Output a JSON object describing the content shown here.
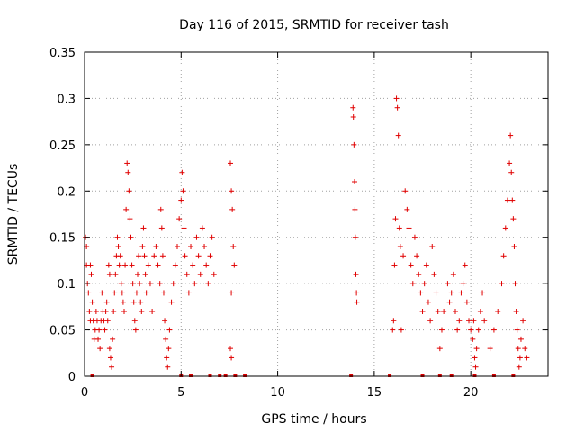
{
  "chart_data": {
    "type": "scatter",
    "title": "Day 116 of 2015, SRMTID for receiver tash",
    "xlabel": "GPS time / hours",
    "ylabel": "SRMTID / TECUs",
    "xlim": [
      0,
      24
    ],
    "ylim": [
      0,
      0.35
    ],
    "xticks": [
      0,
      5,
      10,
      15,
      20
    ],
    "xtick_labels": [
      "0",
      "5",
      "10",
      "15",
      "20"
    ],
    "yticks": [
      0,
      0.05,
      0.1,
      0.15,
      0.2,
      0.25,
      0.3,
      0.35
    ],
    "ytick_labels": [
      "0",
      "0.05",
      "0.1",
      "0.15",
      "0.2",
      "0.25",
      "0.3",
      "0.35"
    ],
    "grid": true,
    "marker": "plus",
    "color": "#e00000",
    "series": [
      {
        "name": "SRMTID",
        "points": [
          [
            0.05,
            0.15
          ],
          [
            0.1,
            0.14
          ],
          [
            0.1,
            0.12
          ],
          [
            0.15,
            0.1
          ],
          [
            0.2,
            0.09
          ],
          [
            0.25,
            0.07
          ],
          [
            0.3,
            0.06
          ],
          [
            0.3,
            0.12
          ],
          [
            0.35,
            0.11
          ],
          [
            0.4,
            0.08
          ],
          [
            0.45,
            0.06
          ],
          [
            0.5,
            0.04
          ],
          [
            0.55,
            0.05
          ],
          [
            0.6,
            0.07
          ],
          [
            0.65,
            0.06
          ],
          [
            0.7,
            0.04
          ],
          [
            0.75,
            0.05
          ],
          [
            0.8,
            0.03
          ],
          [
            0.85,
            0.06
          ],
          [
            0.9,
            0.09
          ],
          [
            0.95,
            0.07
          ],
          [
            1.0,
            0.06
          ],
          [
            1.05,
            0.05
          ],
          [
            1.1,
            0.07
          ],
          [
            1.15,
            0.08
          ],
          [
            1.2,
            0.06
          ],
          [
            1.25,
            0.12
          ],
          [
            1.3,
            0.11
          ],
          [
            1.3,
            0.03
          ],
          [
            1.35,
            0.02
          ],
          [
            1.4,
            0.01
          ],
          [
            1.45,
            0.04
          ],
          [
            1.5,
            0.07
          ],
          [
            1.55,
            0.09
          ],
          [
            1.6,
            0.11
          ],
          [
            1.65,
            0.13
          ],
          [
            1.7,
            0.15
          ],
          [
            1.75,
            0.14
          ],
          [
            1.8,
            0.12
          ],
          [
            1.85,
            0.13
          ],
          [
            1.9,
            0.1
          ],
          [
            1.95,
            0.09
          ],
          [
            2.0,
            0.08
          ],
          [
            2.05,
            0.07
          ],
          [
            2.1,
            0.12
          ],
          [
            2.15,
            0.18
          ],
          [
            2.2,
            0.23
          ],
          [
            2.25,
            0.22
          ],
          [
            2.3,
            0.2
          ],
          [
            2.35,
            0.17
          ],
          [
            2.4,
            0.15
          ],
          [
            2.45,
            0.12
          ],
          [
            2.5,
            0.1
          ],
          [
            2.55,
            0.08
          ],
          [
            2.6,
            0.06
          ],
          [
            2.65,
            0.05
          ],
          [
            2.7,
            0.09
          ],
          [
            2.75,
            0.11
          ],
          [
            2.8,
            0.13
          ],
          [
            2.85,
            0.1
          ],
          [
            2.9,
            0.08
          ],
          [
            2.95,
            0.07
          ],
          [
            3.0,
            0.14
          ],
          [
            3.05,
            0.16
          ],
          [
            3.1,
            0.13
          ],
          [
            3.15,
            0.11
          ],
          [
            3.2,
            0.09
          ],
          [
            3.3,
            0.12
          ],
          [
            3.4,
            0.1
          ],
          [
            3.5,
            0.07
          ],
          [
            3.6,
            0.13
          ],
          [
            3.7,
            0.14
          ],
          [
            3.8,
            0.12
          ],
          [
            3.9,
            0.1
          ],
          [
            3.95,
            0.18
          ],
          [
            4.0,
            0.16
          ],
          [
            4.05,
            0.13
          ],
          [
            4.1,
            0.09
          ],
          [
            4.15,
            0.06
          ],
          [
            4.2,
            0.04
          ],
          [
            4.25,
            0.02
          ],
          [
            4.3,
            0.01
          ],
          [
            4.35,
            0.03
          ],
          [
            4.4,
            0.05
          ],
          [
            4.5,
            0.08
          ],
          [
            4.6,
            0.1
          ],
          [
            4.7,
            0.12
          ],
          [
            4.8,
            0.14
          ],
          [
            4.9,
            0.17
          ],
          [
            5.0,
            0.19
          ],
          [
            5.05,
            0.22
          ],
          [
            5.1,
            0.2
          ],
          [
            5.15,
            0.16
          ],
          [
            5.2,
            0.13
          ],
          [
            5.3,
            0.11
          ],
          [
            5.4,
            0.09
          ],
          [
            5.5,
            0.14
          ],
          [
            5.6,
            0.12
          ],
          [
            5.7,
            0.1
          ],
          [
            5.8,
            0.15
          ],
          [
            5.9,
            0.13
          ],
          [
            6.0,
            0.11
          ],
          [
            6.1,
            0.16
          ],
          [
            6.2,
            0.14
          ],
          [
            6.3,
            0.12
          ],
          [
            6.4,
            0.1
          ],
          [
            6.5,
            0.13
          ],
          [
            6.6,
            0.15
          ],
          [
            6.7,
            0.11
          ],
          [
            7.55,
            0.23
          ],
          [
            7.6,
            0.2
          ],
          [
            7.65,
            0.18
          ],
          [
            7.7,
            0.14
          ],
          [
            7.75,
            0.12
          ],
          [
            7.6,
            0.09
          ],
          [
            7.55,
            0.03
          ],
          [
            7.6,
            0.02
          ],
          [
            13.9,
            0.29
          ],
          [
            13.92,
            0.28
          ],
          [
            13.95,
            0.25
          ],
          [
            13.98,
            0.21
          ],
          [
            14.0,
            0.18
          ],
          [
            14.02,
            0.15
          ],
          [
            14.05,
            0.11
          ],
          [
            14.08,
            0.09
          ],
          [
            14.1,
            0.08
          ],
          [
            15.95,
            0.05
          ],
          [
            16.0,
            0.06
          ],
          [
            16.05,
            0.12
          ],
          [
            16.1,
            0.17
          ],
          [
            16.15,
            0.3
          ],
          [
            16.2,
            0.29
          ],
          [
            16.25,
            0.26
          ],
          [
            16.3,
            0.16
          ],
          [
            16.35,
            0.14
          ],
          [
            16.4,
            0.05
          ],
          [
            16.5,
            0.13
          ],
          [
            16.6,
            0.2
          ],
          [
            16.7,
            0.18
          ],
          [
            16.8,
            0.16
          ],
          [
            16.9,
            0.12
          ],
          [
            17.0,
            0.1
          ],
          [
            17.1,
            0.15
          ],
          [
            17.2,
            0.13
          ],
          [
            17.3,
            0.11
          ],
          [
            17.4,
            0.09
          ],
          [
            17.5,
            0.07
          ],
          [
            17.6,
            0.1
          ],
          [
            17.7,
            0.12
          ],
          [
            17.8,
            0.08
          ],
          [
            17.9,
            0.06
          ],
          [
            18.0,
            0.14
          ],
          [
            18.1,
            0.11
          ],
          [
            18.2,
            0.09
          ],
          [
            18.3,
            0.07
          ],
          [
            18.4,
            0.03
          ],
          [
            18.5,
            0.05
          ],
          [
            18.6,
            0.07
          ],
          [
            18.8,
            0.1
          ],
          [
            18.9,
            0.08
          ],
          [
            19.0,
            0.09
          ],
          [
            19.1,
            0.11
          ],
          [
            19.2,
            0.07
          ],
          [
            19.3,
            0.05
          ],
          [
            19.4,
            0.06
          ],
          [
            19.5,
            0.09
          ],
          [
            19.6,
            0.1
          ],
          [
            19.7,
            0.12
          ],
          [
            19.8,
            0.08
          ],
          [
            19.9,
            0.06
          ],
          [
            20.0,
            0.05
          ],
          [
            20.1,
            0.04
          ],
          [
            20.15,
            0.06
          ],
          [
            20.2,
            0.02
          ],
          [
            20.25,
            0.01
          ],
          [
            20.3,
            0.03
          ],
          [
            20.4,
            0.05
          ],
          [
            20.5,
            0.07
          ],
          [
            20.6,
            0.09
          ],
          [
            20.7,
            0.06
          ],
          [
            21.0,
            0.03
          ],
          [
            21.2,
            0.05
          ],
          [
            21.4,
            0.07
          ],
          [
            21.6,
            0.1
          ],
          [
            21.7,
            0.13
          ],
          [
            21.8,
            0.16
          ],
          [
            21.9,
            0.19
          ],
          [
            22.0,
            0.23
          ],
          [
            22.05,
            0.26
          ],
          [
            22.1,
            0.22
          ],
          [
            22.15,
            0.19
          ],
          [
            22.2,
            0.17
          ],
          [
            22.25,
            0.14
          ],
          [
            22.3,
            0.1
          ],
          [
            22.35,
            0.07
          ],
          [
            22.4,
            0.05
          ],
          [
            22.45,
            0.03
          ],
          [
            22.5,
            0.01
          ],
          [
            22.55,
            0.02
          ],
          [
            22.6,
            0.04
          ],
          [
            22.7,
            0.06
          ],
          [
            22.8,
            0.03
          ],
          [
            22.9,
            0.02
          ]
        ],
        "zero_markers_x": [
          0.4,
          5.0,
          5.5,
          6.5,
          7.0,
          7.3,
          7.8,
          8.3,
          13.8,
          15.8,
          17.5,
          18.4,
          19.0,
          20.2,
          21.2,
          22.2
        ]
      }
    ]
  }
}
